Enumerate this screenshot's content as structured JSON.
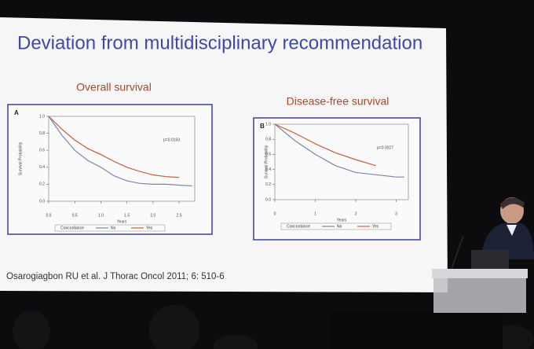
{
  "slide": {
    "title": "Deviation from multidisciplinary recommendation",
    "citation": "Osarogiagbon RU et al. J Thorac Oncol 2011; 6: 510-6"
  },
  "chart_data": [
    {
      "type": "line",
      "title": "Overall survival",
      "panel": "A",
      "y_label": "Survival Probability",
      "x_label": "Years",
      "annotation": "p=0.0193",
      "x": [
        0,
        0.25,
        0.5,
        0.75,
        1.0,
        1.25,
        1.5,
        1.75,
        2.0,
        2.25,
        2.5,
        2.75
      ],
      "series": [
        {
          "name": "No",
          "color": "#7d86a8",
          "values": [
            1.0,
            0.78,
            0.6,
            0.48,
            0.4,
            0.3,
            0.24,
            0.21,
            0.2,
            0.2,
            0.19,
            0.18
          ]
        },
        {
          "name": "Yes",
          "color": "#c0603a",
          "values": [
            1.0,
            0.85,
            0.72,
            0.62,
            0.55,
            0.47,
            0.4,
            0.35,
            0.31,
            0.29,
            0.28,
            null
          ]
        }
      ],
      "legend_title": "Concordance",
      "xlim": [
        0,
        2.8
      ],
      "ylim": [
        0,
        1
      ],
      "xticks": [
        {
          "value": 0,
          "label": "0.0"
        },
        {
          "value": 0.5,
          "label": "0.5"
        },
        {
          "value": 1,
          "label": "1.0"
        },
        {
          "value": 1.5,
          "label": "1.5"
        },
        {
          "value": 2,
          "label": "2.0"
        },
        {
          "value": 2.5,
          "label": "2.5"
        }
      ],
      "yticks": [
        {
          "value": 0,
          "label": "0.0"
        },
        0.2,
        0.4,
        0.6,
        0.8,
        {
          "value": 1,
          "label": "1.0"
        }
      ]
    },
    {
      "type": "line",
      "title": "Disease-free survival",
      "panel": "B",
      "y_label": "Survival Probability",
      "x_label": "Years",
      "annotation": "p=0.0027",
      "x": [
        0,
        0.5,
        1,
        1.5,
        2,
        2.5,
        3,
        3.2
      ],
      "series": [
        {
          "name": "No",
          "color": "#7d86a8",
          "values": [
            1.0,
            0.78,
            0.6,
            0.45,
            0.36,
            0.33,
            0.3,
            0.3
          ]
        },
        {
          "name": "Yes",
          "color": "#c0603a",
          "values": [
            1.0,
            0.88,
            0.74,
            0.62,
            0.53,
            0.45,
            null,
            null
          ]
        }
      ],
      "legend_title": "Concordance",
      "xlim": [
        0,
        3.3
      ],
      "ylim": [
        0,
        1
      ],
      "xticks": [
        0,
        1,
        2,
        3
      ],
      "yticks": [
        {
          "value": 0,
          "label": "0.0"
        },
        0.2,
        0.4,
        0.6,
        0.8,
        {
          "value": 1,
          "label": "1.0"
        }
      ]
    }
  ]
}
